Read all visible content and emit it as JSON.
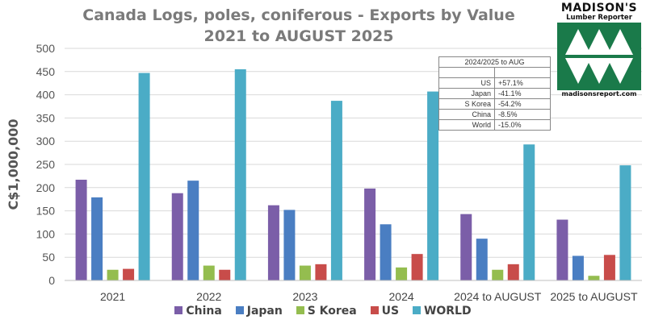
{
  "chart_data": {
    "type": "bar",
    "title": "Canada Logs, poles, coniferous -  Exports by Value",
    "subtitle": "2021 to AUGUST 2025",
    "xlabel": "",
    "ylabel": "C$1,000,000",
    "ylim": [
      0,
      500
    ],
    "yticks": [
      0,
      50,
      100,
      150,
      200,
      250,
      300,
      350,
      400,
      450,
      500
    ],
    "grid": true,
    "legend_position": "bottom",
    "categories": [
      "2021",
      "2022",
      "2023",
      "2024",
      "2024 to AUGUST",
      "2025 to AUGUST"
    ],
    "series": [
      {
        "name": "China",
        "color": "#7b5ea8",
        "values": [
          217,
          188,
          162,
          198,
          143,
          131
        ]
      },
      {
        "name": "Japan",
        "color": "#4a7ec2",
        "values": [
          179,
          215,
          152,
          121,
          90,
          53
        ]
      },
      {
        "name": "S Korea",
        "color": "#94bd4f",
        "values": [
          23,
          32,
          32,
          28,
          23,
          10
        ]
      },
      {
        "name": "US",
        "color": "#c84c4a",
        "values": [
          25,
          23,
          35,
          57,
          35,
          55
        ]
      },
      {
        "name": "WORLD",
        "color": "#4bacc6",
        "values": [
          447,
          455,
          387,
          407,
          293,
          248
        ]
      }
    ]
  },
  "change_table": {
    "header": "2024/2025 to AUG",
    "rows": [
      {
        "label": "US",
        "value": "+57.1%"
      },
      {
        "label": "Japan",
        "value": "-41.1%"
      },
      {
        "label": "S Korea",
        "value": "-54.2%"
      },
      {
        "label": "China",
        "value": "-8.5%"
      },
      {
        "label": "World",
        "value": "-15.0%"
      }
    ]
  },
  "logo": {
    "name": "MADISON'S",
    "tagline": "Lumber Reporter",
    "site": "madisonsreport.com",
    "color": "#1a7a4a"
  }
}
